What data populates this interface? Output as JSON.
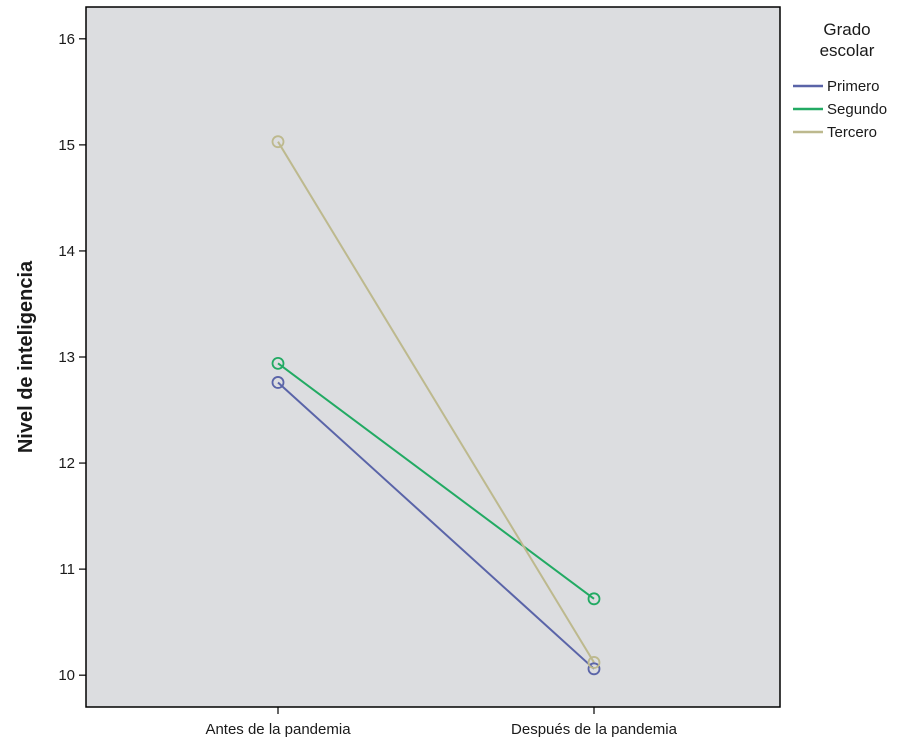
{
  "chart_data": {
    "type": "line",
    "xlabel": "",
    "ylabel": "Nivel de inteligencia",
    "categories": [
      "Antes de la pandemia",
      "Después de la pandemia"
    ],
    "ylim": [
      9.7,
      16.3
    ],
    "yticks": [
      10,
      11,
      12,
      13,
      14,
      15,
      16
    ],
    "grid": false,
    "legend": {
      "title_lines": [
        "Grado",
        "escolar"
      ],
      "placement": "right"
    },
    "plot_background": "#dcdde0",
    "marker": "open-circle",
    "series": [
      {
        "name": "Primero",
        "values": [
          12.76,
          10.06
        ],
        "color": "#5a64a8"
      },
      {
        "name": "Segundo",
        "values": [
          12.94,
          10.72
        ],
        "color": "#22aa63"
      },
      {
        "name": "Tercero",
        "values": [
          15.03,
          10.12
        ],
        "color": "#bdb98e"
      }
    ]
  }
}
